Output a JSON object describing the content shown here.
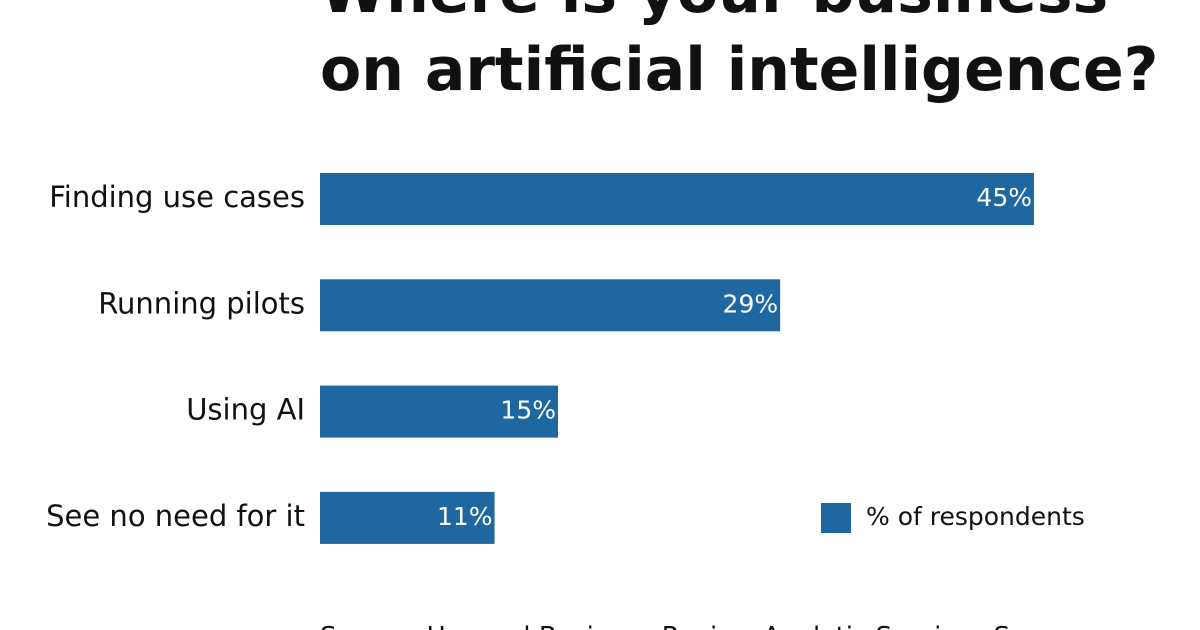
{
  "chart_data": {
    "type": "bar",
    "orientation": "horizontal",
    "title": [
      "Where is your business",
      "on artificial intelligence?"
    ],
    "categories": [
      "Finding use cases",
      "Running pilots",
      "Using AI",
      "See no need for it"
    ],
    "series": [
      {
        "name": "% of respondents",
        "color": "#1f67a0",
        "values": [
          45,
          29,
          15,
          11
        ],
        "value_labels": [
          "45%",
          "29%",
          "15%",
          "11%"
        ]
      }
    ],
    "source": "Source: Harvard Business Review Analytic Services Survey"
  }
}
